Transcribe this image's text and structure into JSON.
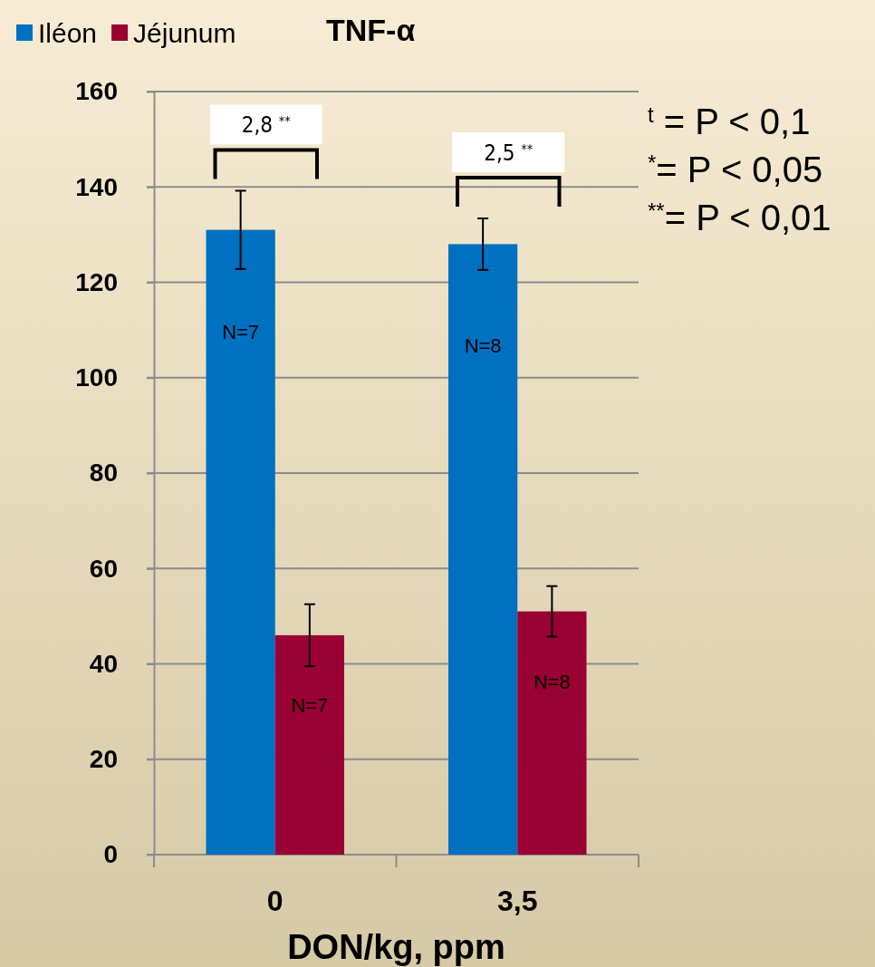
{
  "chart_data": {
    "type": "bar",
    "title": "TNF-α",
    "xlabel": "DON/kg, ppm",
    "categories": [
      "0",
      "3,5"
    ],
    "series": [
      {
        "name": "Iléon",
        "color": "#0070c0",
        "values": [
          131,
          128
        ],
        "errors": [
          8.2,
          5.4
        ]
      },
      {
        "name": "Jéjunum",
        "color": "#990033",
        "values": [
          46,
          51
        ],
        "errors": [
          6.5,
          5.3
        ]
      }
    ],
    "ylim": [
      0,
      160
    ],
    "yticks": [
      0,
      20,
      40,
      60,
      80,
      100,
      120,
      140,
      160
    ],
    "grid": "y",
    "legend": "top left",
    "annotations": [
      "2,8 $^{**}$",
      "2,5 $^{**}$",
      "N=7",
      "N=8",
      "N=7",
      "N=8",
      "$^{t}$ = P < 0,1",
      "$^{*}$= P < 0,05",
      "$^{**}$= P < 0,01"
    ]
  }
}
